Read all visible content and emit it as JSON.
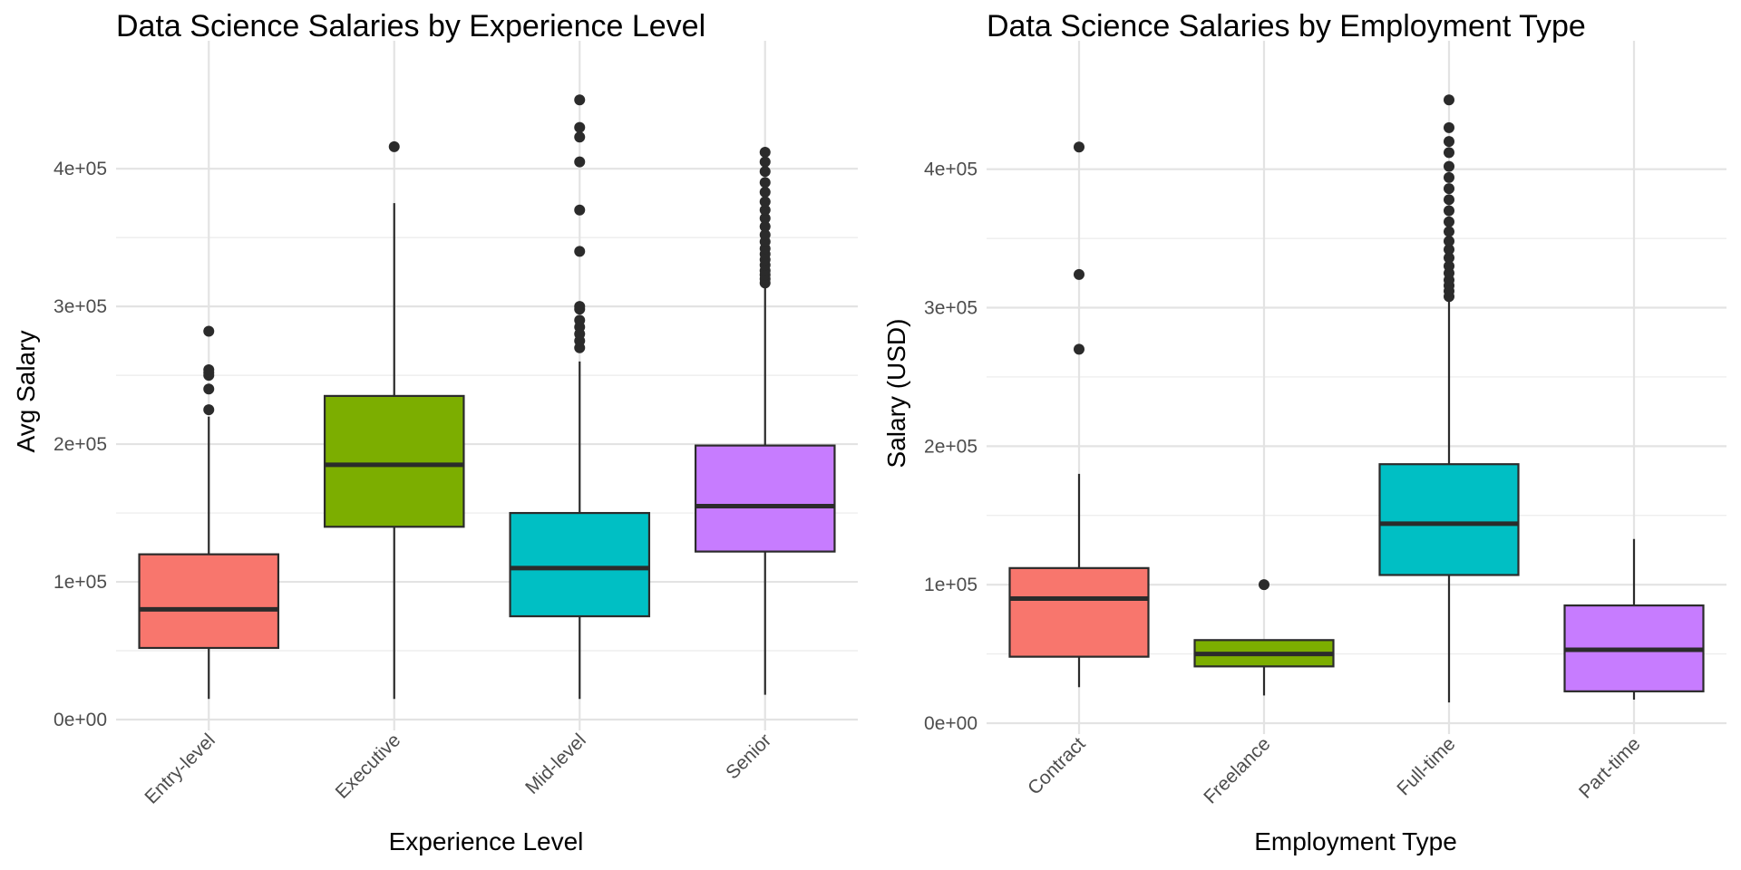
{
  "chart_data": [
    {
      "type": "box",
      "title": "Data Science Salaries by Experience Level",
      "xlabel": "Experience Level",
      "ylabel": "Avg Salary",
      "ylim": [
        0,
        460000
      ],
      "yticks": [
        0,
        100000,
        200000,
        300000,
        400000
      ],
      "ytick_labels": [
        "0e+00",
        "1e+05",
        "2e+05",
        "3e+05",
        "4e+05"
      ],
      "grid": true,
      "legend": "none",
      "categories": [
        "Entry-level",
        "Executive",
        "Mid-level",
        "Senior"
      ],
      "colors": [
        "#F8766D",
        "#7CAE00",
        "#00BFC4",
        "#C77CFF"
      ],
      "boxes": [
        {
          "whisker_low": 15000,
          "q1": 52000,
          "median": 80000,
          "q3": 120000,
          "whisker_high": 220000,
          "outliers": [
            225000,
            240000,
            250000,
            252000,
            254000,
            282000
          ]
        },
        {
          "whisker_low": 15000,
          "q1": 140000,
          "median": 185000,
          "q3": 235000,
          "whisker_high": 375000,
          "outliers": [
            416000
          ]
        },
        {
          "whisker_low": 15000,
          "q1": 75000,
          "median": 110000,
          "q3": 150000,
          "whisker_high": 260000,
          "outliers": [
            270000,
            275000,
            280000,
            285000,
            290000,
            298000,
            300000,
            340000,
            370000,
            405000,
            423000,
            430000,
            450000
          ]
        },
        {
          "whisker_low": 18000,
          "q1": 122000,
          "median": 155000,
          "q3": 199000,
          "whisker_high": 315000,
          "outliers": [
            317000,
            320000,
            323000,
            326000,
            330000,
            334000,
            338000,
            342000,
            347000,
            352000,
            358000,
            364000,
            370000,
            376000,
            383000,
            390000,
            398000,
            405000,
            412000
          ]
        }
      ]
    },
    {
      "type": "box",
      "title": "Data Science Salaries by Employment Type",
      "xlabel": "Employment Type",
      "ylabel": "Salary (USD)",
      "ylim": [
        0,
        460000
      ],
      "yticks": [
        0,
        100000,
        200000,
        300000,
        400000
      ],
      "ytick_labels": [
        "0e+00",
        "1e+05",
        "2e+05",
        "3e+05",
        "4e+05"
      ],
      "grid": true,
      "legend": "none",
      "categories": [
        "Contract",
        "Freelance",
        "Full-time",
        "Part-time"
      ],
      "colors": [
        "#F8766D",
        "#7CAE00",
        "#00BFC4",
        "#C77CFF"
      ],
      "boxes": [
        {
          "whisker_low": 26000,
          "q1": 48000,
          "median": 90000,
          "q3": 112000,
          "whisker_high": 180000,
          "outliers": [
            270000,
            324000,
            416000
          ]
        },
        {
          "whisker_low": 20000,
          "q1": 41000,
          "median": 50000,
          "q3": 60000,
          "whisker_high": 60000,
          "outliers": [
            100000
          ]
        },
        {
          "whisker_low": 15000,
          "q1": 107000,
          "median": 144000,
          "q3": 187000,
          "whisker_high": 305000,
          "outliers": [
            308000,
            312000,
            316000,
            320000,
            325000,
            330000,
            336000,
            342000,
            348000,
            355000,
            362000,
            370000,
            378000,
            386000,
            394000,
            402000,
            412000,
            420000,
            430000,
            450000
          ]
        },
        {
          "whisker_low": 17000,
          "q1": 23000,
          "median": 53000,
          "q3": 85000,
          "whisker_high": 133000,
          "outliers": []
        }
      ]
    }
  ]
}
